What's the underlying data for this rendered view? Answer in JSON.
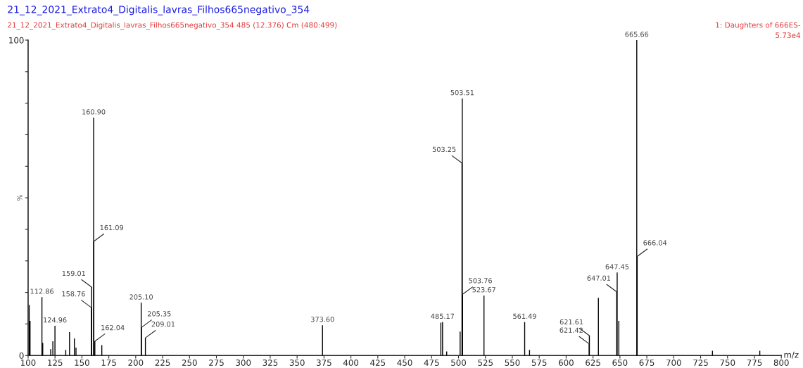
{
  "chart_data": {
    "type": "bar",
    "title": "21_12_2021_Extrato4_Digitalis_lavras_Filhos665negativo_354",
    "subtitle": "21_12_2021_Extrato4_Digitalis_lavras_Filhos665negativo_354 485 (12.376) Cm (480:499)",
    "xlabel": "m/z",
    "ylabel": "%",
    "x": [
      101.0,
      101.8,
      112.86,
      113.6,
      121.0,
      123.0,
      124.96,
      135.0,
      138.5,
      143.0,
      144.5,
      158.76,
      159.01,
      160.9,
      161.09,
      162.04,
      168.5,
      205.1,
      205.35,
      209.01,
      373.6,
      483.6,
      485.17,
      489.0,
      501.5,
      503.25,
      503.51,
      503.76,
      523.67,
      561.49,
      566.0,
      621.42,
      621.61,
      630.0,
      647.01,
      647.45,
      649.0,
      665.66,
      666.04,
      736.0,
      780.0
    ],
    "values": [
      16,
      11,
      18.5,
      4,
      2,
      4.5,
      9.4,
      1.8,
      7.4,
      5.4,
      2.5,
      15.2,
      21.7,
      75.4,
      36.2,
      4.5,
      3.3,
      16.7,
      8.9,
      5.6,
      9.6,
      10.4,
      10.6,
      1.3,
      7.6,
      61,
      81.5,
      19.4,
      19,
      10.6,
      1.8,
      3.7,
      6.3,
      18.3,
      20.2,
      26.3,
      11,
      100,
      31.4,
      1.5,
      1.5
    ],
    "color": "#000000",
    "xlim": [
      100,
      800
    ],
    "xticks": [
      100,
      125,
      150,
      175,
      200,
      225,
      250,
      275,
      300,
      325,
      350,
      375,
      400,
      425,
      450,
      475,
      500,
      525,
      550,
      575,
      600,
      625,
      650,
      675,
      700,
      725,
      750,
      775,
      800
    ],
    "ylim": [
      0,
      100
    ],
    "yticks": [
      0,
      {
        "value": 10,
        "label": null
      },
      {
        "value": 20,
        "label": null
      },
      {
        "value": 30,
        "label": null
      },
      {
        "value": 40,
        "label": null
      },
      {
        "value": 50,
        "label": null
      },
      {
        "value": 60,
        "label": null
      },
      {
        "value": 70,
        "label": null
      },
      {
        "value": 80,
        "label": null
      },
      {
        "value": 90,
        "label": null
      },
      100
    ],
    "grid": false,
    "legend": false,
    "annotations": [
      "1: Daughters of 666ES-",
      "5.73e4",
      {
        "text": "112.86",
        "x": 112.86,
        "y": 18.5
      },
      {
        "text": "124.96",
        "x": 124.96,
        "y": 9.4
      },
      {
        "text": "158.76",
        "x": 158.76,
        "y": 15.2
      },
      {
        "text": "159.01",
        "x": 159.01,
        "y": 21.7
      },
      {
        "text": "160.90",
        "x": 160.9,
        "y": 75.4
      },
      {
        "text": "161.09",
        "x": 161.09,
        "y": 36.2
      },
      {
        "text": "162.04",
        "x": 162.04,
        "y": 4.5
      },
      {
        "text": "205.10",
        "x": 205.1,
        "y": 16.7
      },
      {
        "text": "205.35",
        "x": 205.35,
        "y": 8.9
      },
      {
        "text": "209.01",
        "x": 209.01,
        "y": 5.6
      },
      {
        "text": "373.60",
        "x": 373.6,
        "y": 9.6
      },
      {
        "text": "485.17",
        "x": 485.17,
        "y": 10.6
      },
      {
        "text": "503.25",
        "x": 503.25,
        "y": 61
      },
      {
        "text": "503.51",
        "x": 503.51,
        "y": 81.5
      },
      {
        "text": "503.76",
        "x": 503.76,
        "y": 19.4
      },
      {
        "text": "523.67",
        "x": 523.67,
        "y": 19
      },
      {
        "text": "561.49",
        "x": 561.49,
        "y": 10.6
      },
      {
        "text": "621.42",
        "x": 621.42,
        "y": 3.7
      },
      {
        "text": "621.61",
        "x": 621.61,
        "y": 6.3
      },
      {
        "text": "647.01",
        "x": 647.01,
        "y": 20.2
      },
      {
        "text": "647.45",
        "x": 647.45,
        "y": 26.3
      },
      {
        "text": "665.66",
        "x": 665.66,
        "y": 100
      },
      {
        "text": "666.04",
        "x": 666.04,
        "y": 31.4
      }
    ]
  }
}
